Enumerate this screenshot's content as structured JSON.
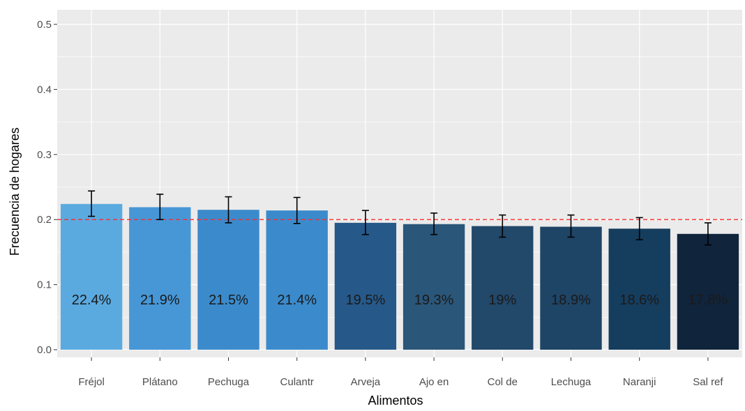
{
  "chart_data": {
    "type": "bar",
    "title": "",
    "xlabel": "Alimentos",
    "ylabel": "Frecuencia de hogares",
    "ylim": [
      0,
      0.52
    ],
    "yticks": [
      "0.0",
      "0.1",
      "0.2",
      "0.3",
      "0.4",
      "0.5"
    ],
    "grid": true,
    "legend": "none",
    "categories": [
      "Fréjol",
      "Plátano",
      "Pechuga",
      "Culantr",
      "Arveja",
      "Ajo en",
      "Col de",
      "Lechuga",
      "Naranji",
      "Sal ref"
    ],
    "values": [
      0.224,
      0.219,
      0.215,
      0.214,
      0.195,
      0.193,
      0.19,
      0.189,
      0.186,
      0.178
    ],
    "error_low": [
      0.205,
      0.2,
      0.195,
      0.194,
      0.177,
      0.177,
      0.173,
      0.173,
      0.169,
      0.161
    ],
    "error_high": [
      0.244,
      0.239,
      0.235,
      0.234,
      0.214,
      0.21,
      0.207,
      0.207,
      0.203,
      0.195
    ],
    "data_labels": [
      "22.4%",
      "21.9%",
      "21.5%",
      "21.4%",
      "19.5%",
      "19.3%",
      "19%",
      "18.9%",
      "18.6%",
      "17.8%"
    ],
    "reference_line": {
      "value": 0.2,
      "color": "#ff2a2a",
      "style": "dashed"
    },
    "bar_colors": [
      "#5aaae0",
      "#4797d7",
      "#3b8bcc",
      "#3b8bcc",
      "#265989",
      "#2a5679",
      "#22486a",
      "#1e4466",
      "#153d5e",
      "#10243c"
    ],
    "panel_background": "#ebebeb",
    "grid_color": "#ffffff"
  }
}
